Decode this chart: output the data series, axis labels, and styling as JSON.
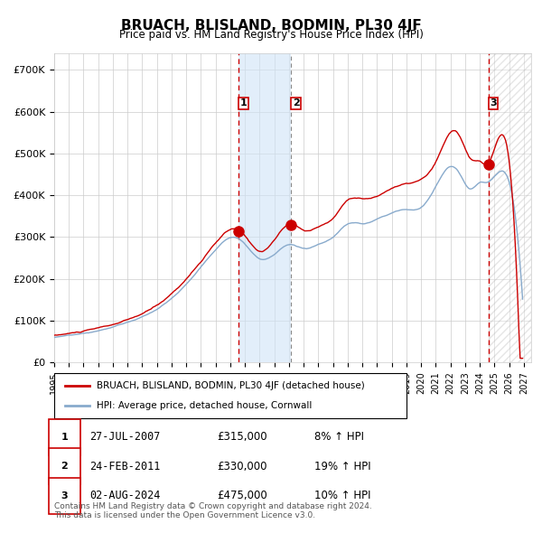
{
  "title": "BRUACH, BLISLAND, BODMIN, PL30 4JF",
  "subtitle": "Price paid vs. HM Land Registry's House Price Index (HPI)",
  "ylabel_ticks": [
    "£0",
    "£100K",
    "£200K",
    "£300K",
    "£400K",
    "£500K",
    "£600K",
    "£700K"
  ],
  "ytick_values": [
    0,
    100000,
    200000,
    300000,
    400000,
    500000,
    600000,
    700000
  ],
  "ylim": [
    0,
    740000
  ],
  "xlim_start": 1995.0,
  "xlim_end": 2027.5,
  "xticks": [
    1995,
    1996,
    1997,
    1998,
    1999,
    2000,
    2001,
    2002,
    2003,
    2004,
    2005,
    2006,
    2007,
    2008,
    2009,
    2010,
    2011,
    2012,
    2013,
    2014,
    2015,
    2016,
    2017,
    2018,
    2019,
    2020,
    2021,
    2022,
    2023,
    2024,
    2025,
    2026,
    2027
  ],
  "line_color_red": "#cc0000",
  "line_color_blue": "#88aacc",
  "grid_color": "#cccccc",
  "bg_color": "#ffffff",
  "sale1_x": 2007.57,
  "sale1_y": 315000,
  "sale2_x": 2011.15,
  "sale2_y": 330000,
  "sale3_x": 2024.58,
  "sale3_y": 475000,
  "vline1_x": 2007.57,
  "vline2_x": 2024.58,
  "shade1_start": 2007.57,
  "shade1_end": 2011.15,
  "shade2_start": 2024.58,
  "shade2_end": 2027.5,
  "legend_red_label": "BRUACH, BLISLAND, BODMIN, PL30 4JF (detached house)",
  "legend_blue_label": "HPI: Average price, detached house, Cornwall",
  "table_rows": [
    {
      "num": "1",
      "date": "27-JUL-2007",
      "price": "£315,000",
      "change": "8% ↑ HPI"
    },
    {
      "num": "2",
      "date": "24-FEB-2011",
      "price": "£330,000",
      "change": "19% ↑ HPI"
    },
    {
      "num": "3",
      "date": "02-AUG-2024",
      "price": "£475,000",
      "change": "10% ↑ HPI"
    }
  ],
  "footer": "Contains HM Land Registry data © Crown copyright and database right 2024.\nThis data is licensed under the Open Government Licence v3.0."
}
